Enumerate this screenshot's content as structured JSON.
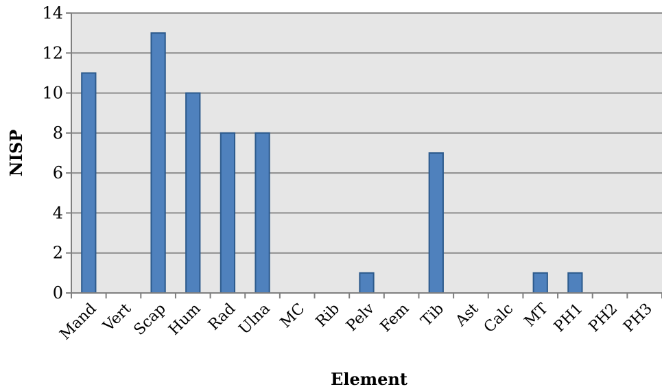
{
  "chart_data": {
    "type": "bar",
    "title": "",
    "xlabel": "Element",
    "ylabel": "NISP",
    "categories": [
      "Mand",
      "Vert",
      "Scap",
      "Hum",
      "Rad",
      "Ulna",
      "MC",
      "Rib",
      "Pelv",
      "Fem",
      "Tib",
      "Ast",
      "Calc",
      "MT",
      "PH1",
      "PH2",
      "PH3"
    ],
    "values": [
      11,
      0,
      13,
      10,
      8,
      8,
      0,
      0,
      1,
      0,
      7,
      0,
      0,
      1,
      1,
      0,
      0
    ],
    "ylim": [
      0,
      14
    ],
    "yticks": [
      "0",
      "2",
      "4",
      "6",
      "8",
      "10",
      "12",
      "14"
    ],
    "grid": true,
    "legend": "none",
    "colors": {
      "bar_fill": "#4f81bd",
      "bar_stroke": "#2c5a8c",
      "plot_bg": "#e6e6e6",
      "grid": "#8c8c8c"
    }
  }
}
